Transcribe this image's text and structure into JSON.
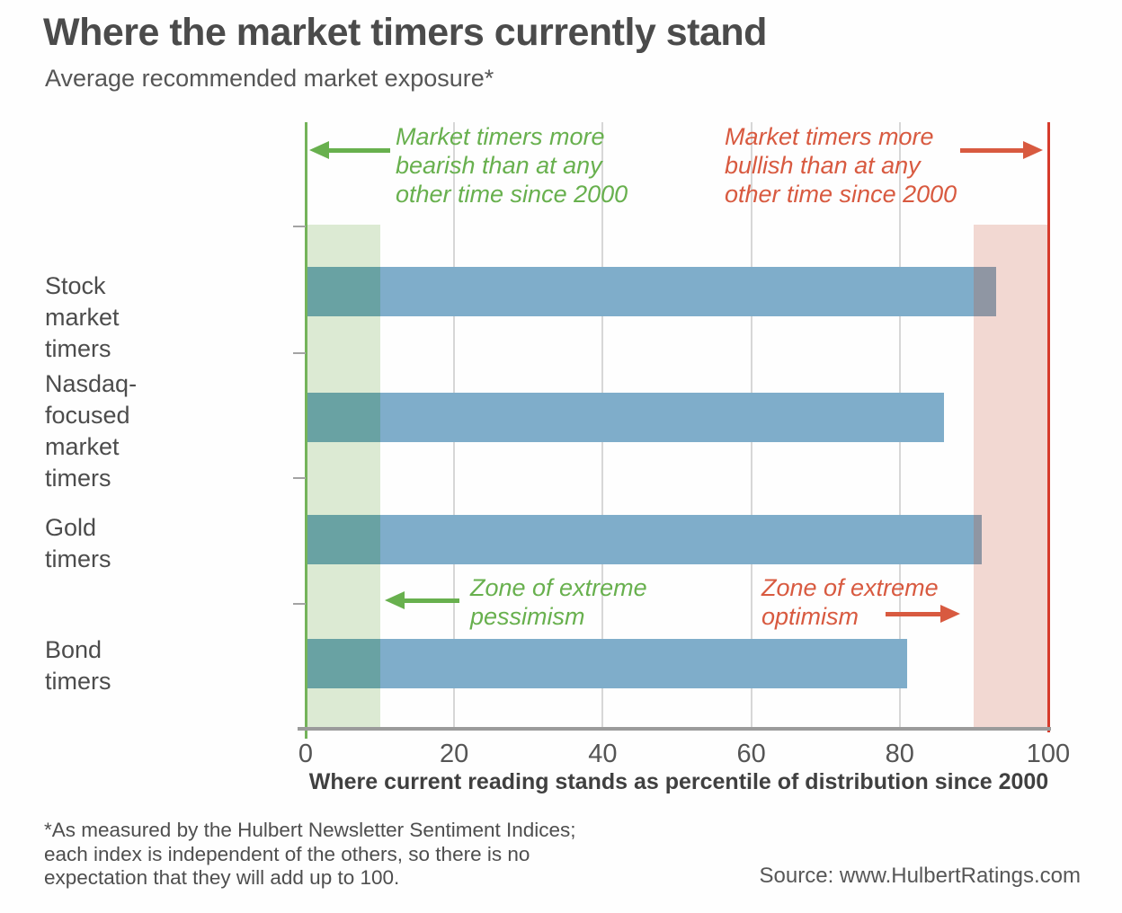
{
  "chart_data": {
    "type": "bar",
    "orientation": "horizontal",
    "title": "Where the market timers currently stand",
    "subtitle": "Average recommended market exposure*",
    "categories": [
      "Stock market timers",
      "Nasdaq-focused market timers",
      "Gold timers",
      "Bond timers"
    ],
    "category_display_lines": [
      [
        "Stock market timers"
      ],
      [
        "Nasdaq-focused",
        "market timers"
      ],
      [
        "Gold timers"
      ],
      [
        "Bond timers"
      ]
    ],
    "values": [
      93,
      86,
      91,
      81
    ],
    "xlabel": "Where current reading stands as percentile of distribution since 2000",
    "xlim": [
      0,
      100
    ],
    "x_ticks": [
      0,
      20,
      40,
      60,
      80,
      100
    ],
    "grid": true,
    "legend": "none",
    "zones": [
      {
        "name": "extreme-pessimism",
        "range": [
          0,
          10
        ],
        "fill": "#dcead3",
        "edge_line": "#74b35a",
        "edge_at": 0
      },
      {
        "name": "extreme-optimism",
        "range": [
          90,
          100
        ],
        "fill": "#f2d8d2",
        "edge_line": "#d63b2c",
        "edge_at": 100
      }
    ],
    "colors": {
      "bar": "#7fadca",
      "bar_over_green_zone": "#69a2a3",
      "bar_over_red_zone": "#8f96a3",
      "grid_line": "#d7d7d7",
      "axis_line": "#9b9b9b",
      "green_accent": "#68b04e",
      "red_accent": "#d85a40",
      "green_zone_line": "#74b35a",
      "red_zone_line": "#d63b2c"
    },
    "annotations": [
      {
        "id": "bearish",
        "color": "green",
        "arrow": "left",
        "lines": [
          "Market timers more",
          "bearish than at any",
          "other time since 2000"
        ]
      },
      {
        "id": "bullish",
        "color": "red",
        "arrow": "right",
        "lines": [
          "Market timers more",
          "bullish than at any",
          "other time since 2000"
        ]
      },
      {
        "id": "pessimism",
        "color": "green",
        "arrow": "left",
        "lines": [
          "Zone of extreme",
          "pessimism"
        ]
      },
      {
        "id": "optimism",
        "color": "red",
        "arrow": "right",
        "lines": [
          "Zone of extreme",
          "optimism"
        ]
      }
    ]
  },
  "footer": {
    "footnote_lines": [
      "*As measured by the Hulbert Newsletter Sentiment Indices;",
      "each index is independent of the others, so there is no",
      "expectation that they will add up to 100."
    ],
    "source": "Source: www.HulbertRatings.com"
  }
}
